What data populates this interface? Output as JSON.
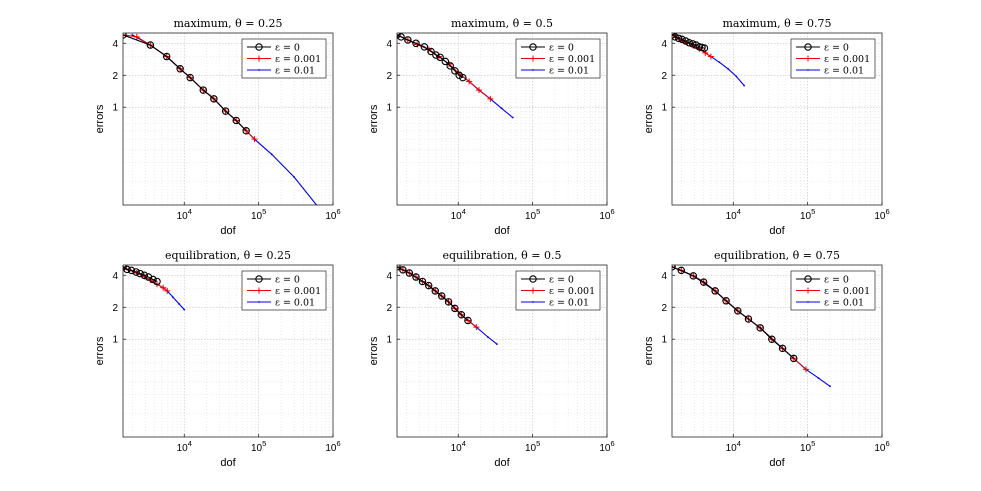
{
  "colors": {
    "s0": "#000000",
    "s1": "#ee0000",
    "s2": "#0000ee",
    "grid": "#d0d0d0"
  },
  "chart_data": [
    {
      "type": "line",
      "title": "maximum, θ = 0.25",
      "xlabel": "dof",
      "ylabel": "errors",
      "xscale": "log",
      "yscale": "log",
      "xlim": [
        1500,
        1000000
      ],
      "ylim": [
        0.12,
        5
      ],
      "xticks": [
        "10^4",
        "10^5",
        "10^6"
      ],
      "yticks": [
        "1",
        "2",
        "4"
      ],
      "grid": "on",
      "legend_location": "top-right",
      "series": [
        {
          "name": "ε = 0",
          "marker": "circle",
          "points": [
            [
              1500,
              4.8
            ],
            [
              3500,
              3.85
            ],
            [
              5800,
              3.0
            ],
            [
              8800,
              2.3
            ],
            [
              12000,
              1.9
            ],
            [
              18000,
              1.45
            ],
            [
              25000,
              1.2
            ],
            [
              36000,
              0.92
            ],
            [
              50000,
              0.75
            ],
            [
              68000,
              0.6
            ]
          ]
        },
        {
          "name": "ε = 0.001",
          "marker": "plus",
          "points": [
            [
              1500,
              4.8
            ],
            [
              2300,
              4.6
            ],
            [
              3500,
              3.85
            ],
            [
              5800,
              3.0
            ],
            [
              8800,
              2.3
            ],
            [
              12000,
              1.9
            ],
            [
              18000,
              1.45
            ],
            [
              25000,
              1.2
            ],
            [
              36000,
              0.92
            ],
            [
              50000,
              0.75
            ],
            [
              68000,
              0.6
            ],
            [
              88000,
              0.5
            ]
          ]
        },
        {
          "name": "ε = 0.01",
          "marker": "dot",
          "points": [
            [
              2000,
              4.8
            ],
            [
              3500,
              3.85
            ],
            [
              5800,
              3.0
            ],
            [
              8800,
              2.3
            ],
            [
              12000,
              1.9
            ],
            [
              18000,
              1.45
            ],
            [
              25000,
              1.2
            ],
            [
              36000,
              0.92
            ],
            [
              50000,
              0.75
            ],
            [
              68000,
              0.6
            ],
            [
              88000,
              0.5
            ],
            [
              150000,
              0.36
            ],
            [
              300000,
              0.22
            ],
            [
              600000,
              0.12
            ]
          ]
        }
      ]
    },
    {
      "type": "line",
      "title": "maximum, θ = 0.5",
      "xlabel": "dof",
      "ylabel": "errors",
      "xscale": "log",
      "yscale": "log",
      "xlim": [
        1500,
        1000000
      ],
      "ylim": [
        0.12,
        5
      ],
      "xticks": [
        "10^4",
        "10^5",
        "10^6"
      ],
      "yticks": [
        "1",
        "2",
        "4"
      ],
      "grid": "on",
      "legend_location": "top-right",
      "series": [
        {
          "name": "ε = 0",
          "marker": "circle",
          "points": [
            [
              1500,
              4.8
            ],
            [
              1700,
              4.6
            ],
            [
              2100,
              4.3
            ],
            [
              2700,
              4.0
            ],
            [
              3500,
              3.7
            ],
            [
              4300,
              3.35
            ],
            [
              5000,
              3.1
            ],
            [
              5700,
              2.95
            ],
            [
              6700,
              2.7
            ],
            [
              7800,
              2.45
            ],
            [
              9000,
              2.2
            ],
            [
              10300,
              2.0
            ],
            [
              11500,
              1.9
            ]
          ]
        },
        {
          "name": "ε = 0.001",
          "marker": "plus",
          "points": [
            [
              1500,
              4.8
            ],
            [
              2100,
              4.3
            ],
            [
              2800,
              3.9
            ],
            [
              4000,
              3.5
            ],
            [
              5500,
              3.0
            ],
            [
              7500,
              2.55
            ],
            [
              10000,
              2.1
            ],
            [
              14000,
              1.75
            ],
            [
              19000,
              1.45
            ],
            [
              27000,
              1.2
            ]
          ]
        },
        {
          "name": "ε = 0.01",
          "marker": "dot",
          "points": [
            [
              1500,
              4.8
            ],
            [
              2100,
              4.3
            ],
            [
              2800,
              3.9
            ],
            [
              4000,
              3.5
            ],
            [
              5500,
              3.0
            ],
            [
              7500,
              2.55
            ],
            [
              10000,
              2.1
            ],
            [
              14000,
              1.75
            ],
            [
              19000,
              1.45
            ],
            [
              27000,
              1.2
            ],
            [
              38000,
              0.98
            ],
            [
              54000,
              0.8
            ]
          ]
        }
      ]
    },
    {
      "type": "line",
      "title": "maximum, θ = 0.75",
      "xlabel": "dof",
      "ylabel": "errors",
      "xscale": "log",
      "yscale": "log",
      "xlim": [
        1500,
        1000000
      ],
      "ylim": [
        0.12,
        5
      ],
      "xticks": [
        "10^4",
        "10^5",
        "10^6"
      ],
      "yticks": [
        "1",
        "2",
        "4"
      ],
      "grid": "on",
      "legend_location": "top-right",
      "series": [
        {
          "name": "ε = 0",
          "marker": "circle",
          "points": [
            [
              1500,
              4.8
            ],
            [
              1650,
              4.6
            ],
            [
              1850,
              4.45
            ],
            [
              2050,
              4.35
            ],
            [
              2300,
              4.2
            ],
            [
              2550,
              4.05
            ],
            [
              2850,
              3.95
            ],
            [
              3150,
              3.85
            ],
            [
              3500,
              3.7
            ],
            [
              3800,
              3.65
            ],
            [
              4100,
              3.6
            ]
          ]
        },
        {
          "name": "ε = 0.001",
          "marker": "plus",
          "points": [
            [
              1500,
              4.8
            ],
            [
              1700,
              4.55
            ],
            [
              2000,
              4.3
            ],
            [
              2400,
              4.05
            ],
            [
              2900,
              3.8
            ],
            [
              3500,
              3.55
            ],
            [
              4200,
              3.25
            ],
            [
              5000,
              3.0
            ]
          ]
        },
        {
          "name": "ε = 0.01",
          "marker": "dot",
          "points": [
            [
              1500,
              4.8
            ],
            [
              1700,
              4.55
            ],
            [
              2000,
              4.3
            ],
            [
              2400,
              4.05
            ],
            [
              2900,
              3.8
            ],
            [
              3500,
              3.55
            ],
            [
              4200,
              3.25
            ],
            [
              5000,
              3.0
            ],
            [
              6500,
              2.65
            ],
            [
              8500,
              2.3
            ],
            [
              11000,
              1.95
            ],
            [
              14000,
              1.6
            ]
          ]
        }
      ]
    },
    {
      "type": "line",
      "title": "equilibration, θ = 0.25",
      "xlabel": "dof",
      "ylabel": "errors",
      "xscale": "log",
      "yscale": "log",
      "xlim": [
        1500,
        1000000
      ],
      "ylim": [
        0.12,
        5
      ],
      "xticks": [
        "10^4",
        "10^5",
        "10^6"
      ],
      "yticks": [
        "1",
        "2",
        "4"
      ],
      "grid": "on",
      "legend_location": "top-right",
      "series": [
        {
          "name": "ε = 0",
          "marker": "circle",
          "points": [
            [
              1500,
              4.8
            ],
            [
              1700,
              4.55
            ],
            [
              1950,
              4.45
            ],
            [
              2250,
              4.3
            ],
            [
              2550,
              4.15
            ],
            [
              2900,
              4.0
            ],
            [
              3300,
              3.85
            ],
            [
              3800,
              3.65
            ],
            [
              4300,
              3.5
            ]
          ]
        },
        {
          "name": "ε = 0.001",
          "marker": "plus",
          "points": [
            [
              1500,
              4.8
            ],
            [
              1800,
              4.5
            ],
            [
              2300,
              4.2
            ],
            [
              2900,
              3.9
            ],
            [
              3500,
              3.6
            ],
            [
              4300,
              3.3
            ],
            [
              5200,
              3.05
            ],
            [
              5900,
              2.85
            ]
          ]
        },
        {
          "name": "ε = 0.01",
          "marker": "dot",
          "points": [
            [
              1500,
              4.8
            ],
            [
              1800,
              4.5
            ],
            [
              2300,
              4.2
            ],
            [
              2900,
              3.9
            ],
            [
              3500,
              3.6
            ],
            [
              4300,
              3.3
            ],
            [
              5200,
              3.05
            ],
            [
              5900,
              2.85
            ],
            [
              7000,
              2.5
            ],
            [
              8500,
              2.15
            ],
            [
              10000,
              1.9
            ]
          ]
        }
      ]
    },
    {
      "type": "line",
      "title": "equilibration, θ = 0.5",
      "xlabel": "dof",
      "ylabel": "errors",
      "xscale": "log",
      "yscale": "log",
      "xlim": [
        1500,
        1000000
      ],
      "ylim": [
        0.12,
        5
      ],
      "xticks": [
        "10^4",
        "10^5",
        "10^6"
      ],
      "yticks": [
        "1",
        "2",
        "4"
      ],
      "grid": "on",
      "legend_location": "top-right",
      "series": [
        {
          "name": "ε = 0",
          "marker": "circle",
          "points": [
            [
              1500,
              4.8
            ],
            [
              1800,
              4.5
            ],
            [
              2200,
              4.2
            ],
            [
              2700,
              3.85
            ],
            [
              3300,
              3.5
            ],
            [
              4000,
              3.2
            ],
            [
              4900,
              2.85
            ],
            [
              6000,
              2.55
            ],
            [
              7400,
              2.25
            ],
            [
              9000,
              1.95
            ],
            [
              11000,
              1.7
            ],
            [
              13500,
              1.5
            ]
          ]
        },
        {
          "name": "ε = 0.001",
          "marker": "plus",
          "points": [
            [
              1500,
              4.8
            ],
            [
              1800,
              4.5
            ],
            [
              2200,
              4.2
            ],
            [
              2700,
              3.85
            ],
            [
              3300,
              3.5
            ],
            [
              4000,
              3.2
            ],
            [
              4900,
              2.85
            ],
            [
              6000,
              2.55
            ],
            [
              7400,
              2.25
            ],
            [
              9000,
              1.95
            ],
            [
              11000,
              1.7
            ],
            [
              13500,
              1.5
            ],
            [
              17500,
              1.3
            ]
          ]
        },
        {
          "name": "ε = 0.01",
          "marker": "dot",
          "points": [
            [
              1500,
              4.8
            ],
            [
              2200,
              4.2
            ],
            [
              3300,
              3.5
            ],
            [
              4900,
              2.85
            ],
            [
              7400,
              2.25
            ],
            [
              11000,
              1.7
            ],
            [
              17500,
              1.3
            ],
            [
              25000,
              1.05
            ],
            [
              33000,
              0.9
            ]
          ]
        }
      ]
    },
    {
      "type": "line",
      "title": "equilibration, θ = 0.75",
      "xlabel": "dof",
      "ylabel": "errors",
      "xscale": "log",
      "yscale": "log",
      "xlim": [
        1500,
        1000000
      ],
      "ylim": [
        0.12,
        5
      ],
      "xticks": [
        "10^4",
        "10^5",
        "10^6"
      ],
      "yticks": [
        "1",
        "2",
        "4"
      ],
      "grid": "on",
      "legend_location": "top-right",
      "series": [
        {
          "name": "ε = 0",
          "marker": "circle",
          "points": [
            [
              1500,
              4.8
            ],
            [
              2000,
              4.45
            ],
            [
              2900,
              3.95
            ],
            [
              4000,
              3.45
            ],
            [
              5700,
              2.85
            ],
            [
              8000,
              2.3
            ],
            [
              11500,
              1.85
            ],
            [
              16000,
              1.55
            ],
            [
              23000,
              1.28
            ],
            [
              33000,
              1.0
            ],
            [
              46000,
              0.82
            ],
            [
              65000,
              0.66
            ]
          ]
        },
        {
          "name": "ε = 0.001",
          "marker": "plus",
          "points": [
            [
              1500,
              4.8
            ],
            [
              2000,
              4.45
            ],
            [
              2900,
              3.95
            ],
            [
              4000,
              3.45
            ],
            [
              5700,
              2.85
            ],
            [
              8000,
              2.3
            ],
            [
              11500,
              1.85
            ],
            [
              16000,
              1.55
            ],
            [
              23000,
              1.28
            ],
            [
              33000,
              1.0
            ],
            [
              46000,
              0.82
            ],
            [
              65000,
              0.66
            ],
            [
              95000,
              0.52
            ]
          ]
        },
        {
          "name": "ε = 0.01",
          "marker": "dot",
          "points": [
            [
              1500,
              4.8
            ],
            [
              2900,
              3.95
            ],
            [
              5700,
              2.85
            ],
            [
              11500,
              1.85
            ],
            [
              23000,
              1.28
            ],
            [
              46000,
              0.82
            ],
            [
              95000,
              0.52
            ],
            [
              140000,
              0.43
            ],
            [
              200000,
              0.36
            ]
          ]
        }
      ]
    }
  ]
}
